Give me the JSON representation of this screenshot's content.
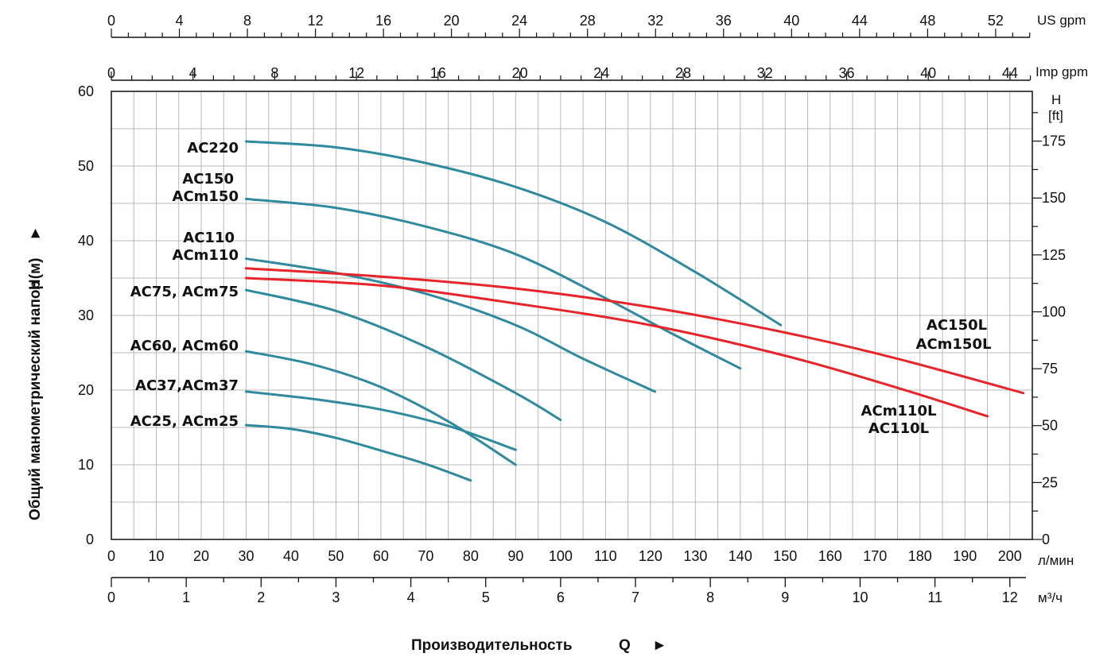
{
  "chart_data": {
    "type": "line",
    "xlabel": "Производительность",
    "xlabel_symbol": "Q",
    "xlabel_arrow": "►",
    "ylabel": "Общий манометрический напор",
    "ylabel_symbol": "H(м)",
    "ylabel_arrow": "►",
    "x_unit": "л/мин",
    "xlim": [
      0,
      205
    ],
    "ylim": [
      0,
      60
    ],
    "grid": true,
    "legend": "labels next to curves",
    "x_ticks": [
      "0",
      "10",
      "20",
      "30",
      "40",
      "50",
      "60",
      "70",
      "80",
      "90",
      "100",
      "110",
      "120",
      "130",
      "140",
      "150",
      "160",
      "170",
      "180",
      "190",
      "200"
    ],
    "y_ticks": [
      "0",
      "10",
      "20",
      "30",
      "40",
      "50",
      "60"
    ],
    "secondary_axes": {
      "m3h": {
        "unit": "м³/ч",
        "ticks": [
          "0",
          "1",
          "2",
          "3",
          "4",
          "5",
          "6",
          "7",
          "8",
          "9",
          "10",
          "11",
          "12"
        ]
      },
      "us_gpm": {
        "unit": "US gpm",
        "ticks": [
          "0",
          "4",
          "8",
          "12",
          "16",
          "20",
          "24",
          "28",
          "32",
          "36",
          "40",
          "44",
          "48",
          "52"
        ]
      },
      "imp_gpm": {
        "unit": "Imp gpm",
        "ticks": [
          "0",
          "4",
          "8",
          "12",
          "16",
          "20",
          "24",
          "28",
          "32",
          "36",
          "40",
          "44"
        ]
      },
      "ft": {
        "unit_line1": "H",
        "unit_line2": "[ft]",
        "ticks": [
          "0",
          "25",
          "50",
          "75",
          "100",
          "125",
          "150",
          "175"
        ]
      }
    },
    "series": [
      {
        "label_lines": [
          "AC220"
        ],
        "color": "#2f8a9e",
        "x": [
          30,
          50,
          70,
          90,
          110,
          130,
          149
        ],
        "y": [
          53.3,
          52.5,
          50.4,
          47.2,
          42.5,
          35.8,
          28.7
        ]
      },
      {
        "label_lines": [
          "AC150",
          "ACm150"
        ],
        "color": "#2f8a9e",
        "x": [
          30,
          50,
          70,
          90,
          110,
          125,
          140
        ],
        "y": [
          45.6,
          44.4,
          41.9,
          38.2,
          32.3,
          27.5,
          22.9
        ]
      },
      {
        "label_lines": [
          "AC110",
          "ACm110"
        ],
        "color": "#2f8a9e",
        "x": [
          30,
          50,
          70,
          90,
          105,
          121
        ],
        "y": [
          37.6,
          35.7,
          32.9,
          28.7,
          24.2,
          19.8
        ]
      },
      {
        "label_lines": [
          "AC75, ACm75"
        ],
        "color": "#2f8a9e",
        "x": [
          30,
          50,
          70,
          90,
          100
        ],
        "y": [
          33.4,
          30.6,
          25.8,
          19.6,
          16.0
        ]
      },
      {
        "label_lines": [
          "AC60, ACm60"
        ],
        "color": "#2f8a9e",
        "x": [
          30,
          45,
          60,
          75,
          90
        ],
        "y": [
          25.2,
          23.4,
          20.4,
          15.8,
          10.0
        ]
      },
      {
        "label_lines": [
          "AC37,ACm37"
        ],
        "color": "#2f8a9e",
        "x": [
          30,
          45,
          60,
          75,
          90
        ],
        "y": [
          19.8,
          18.8,
          17.4,
          15.2,
          12.0
        ]
      },
      {
        "label_lines": [
          "AC25, ACm25"
        ],
        "color": "#2f8a9e",
        "x": [
          30,
          40,
          50,
          60,
          70,
          80
        ],
        "y": [
          15.3,
          14.8,
          13.6,
          11.9,
          10.1,
          7.9
        ]
      },
      {
        "label_lines": [
          "AC150L",
          "ACm150L"
        ],
        "color": "#e8242b",
        "x": [
          30,
          60,
          90,
          120,
          150,
          175,
          203
        ],
        "y": [
          36.3,
          35.2,
          33.6,
          31.1,
          27.7,
          24.2,
          19.6
        ]
      },
      {
        "label_lines": [
          "ACm110L",
          "AC110L"
        ],
        "color": "#e8242b",
        "x": [
          30,
          60,
          90,
          120,
          150,
          175,
          195
        ],
        "y": [
          35.0,
          34.0,
          31.6,
          28.7,
          24.6,
          20.3,
          16.5
        ]
      }
    ]
  }
}
